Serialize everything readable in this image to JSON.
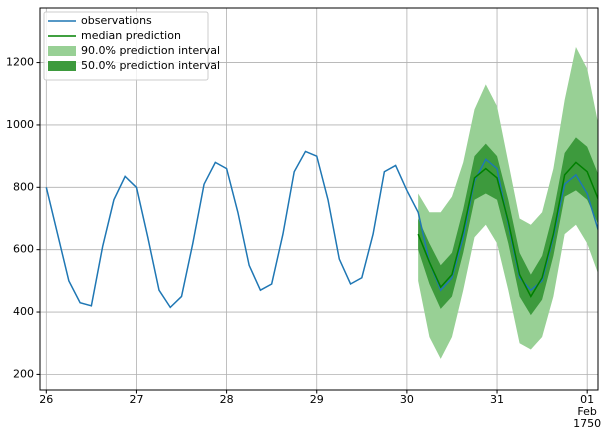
{
  "chart_data": {
    "type": "forecast",
    "xlim": [
      25.93,
      32.12
    ],
    "ylim": [
      150,
      1375
    ],
    "xticks": [
      26,
      27,
      28,
      29,
      30,
      31,
      {
        "value": 32,
        "label": "01\nFeb\n1750"
      }
    ],
    "yticks": [
      200,
      400,
      600,
      800,
      1000,
      1200
    ],
    "grid": true,
    "legend": "upper left",
    "series": [
      {
        "name": "observations",
        "kind": "line",
        "color": "#1f77b4",
        "x": [
          26.0,
          26.125,
          26.25,
          26.375,
          26.5,
          26.625,
          26.75,
          26.875,
          27.0,
          27.125,
          27.25,
          27.375,
          27.5,
          27.625,
          27.75,
          27.875,
          28.0,
          28.125,
          28.25,
          28.375,
          28.5,
          28.625,
          28.75,
          28.875,
          29.0,
          29.125,
          29.25,
          29.375,
          29.5,
          29.625,
          29.75,
          29.875,
          30.0,
          30.125,
          30.25,
          30.375,
          30.5,
          30.625,
          30.75,
          30.875,
          31.0,
          31.125,
          31.25,
          31.375,
          31.5,
          31.625,
          31.75,
          31.875,
          32.0,
          32.125
        ],
        "values": [
          800,
          650,
          500,
          430,
          420,
          610,
          760,
          835,
          800,
          640,
          470,
          415,
          450,
          620,
          810,
          880,
          860,
          720,
          550,
          470,
          490,
          650,
          850,
          915,
          900,
          760,
          570,
          490,
          510,
          650,
          850,
          870,
          790,
          720,
          560,
          470,
          510,
          640,
          820,
          890,
          860,
          680,
          510,
          470,
          500,
          640,
          810,
          840,
          780,
          660
        ]
      },
      {
        "name": "median prediction",
        "kind": "line",
        "color": "#008000",
        "x": [
          30.125,
          30.25,
          30.375,
          30.5,
          30.625,
          30.75,
          30.875,
          31.0,
          31.125,
          31.25,
          31.375,
          31.5,
          31.625,
          31.75,
          31.875,
          32.0,
          32.125
        ],
        "values": [
          650,
          560,
          480,
          520,
          660,
          830,
          860,
          830,
          690,
          520,
          450,
          510,
          650,
          840,
          880,
          850,
          760
        ]
      },
      {
        "name": "90.0% prediction interval",
        "kind": "band",
        "color": "#98d095",
        "x": [
          30.125,
          30.25,
          30.375,
          30.5,
          30.625,
          30.75,
          30.875,
          31.0,
          31.125,
          31.25,
          31.375,
          31.5,
          31.625,
          31.75,
          31.875,
          32.0,
          32.125
        ],
        "lower": [
          500,
          320,
          250,
          320,
          470,
          640,
          680,
          620,
          470,
          300,
          280,
          320,
          450,
          650,
          680,
          620,
          520
        ],
        "upper": [
          780,
          720,
          720,
          770,
          880,
          1050,
          1130,
          1060,
          880,
          700,
          680,
          720,
          860,
          1080,
          1250,
          1180,
          1000
        ]
      },
      {
        "name": "50.0% prediction interval",
        "kind": "band",
        "color": "#3d9a3d",
        "x": [
          30.125,
          30.25,
          30.375,
          30.5,
          30.625,
          30.75,
          30.875,
          31.0,
          31.125,
          31.25,
          31.375,
          31.5,
          31.625,
          31.75,
          31.875,
          32.0,
          32.125
        ],
        "lower": [
          600,
          490,
          410,
          450,
          590,
          760,
          780,
          760,
          620,
          450,
          390,
          440,
          580,
          770,
          790,
          760,
          680
        ],
        "upper": [
          700,
          620,
          550,
          590,
          730,
          900,
          940,
          900,
          760,
          590,
          520,
          580,
          720,
          910,
          960,
          930,
          840
        ]
      }
    ]
  }
}
